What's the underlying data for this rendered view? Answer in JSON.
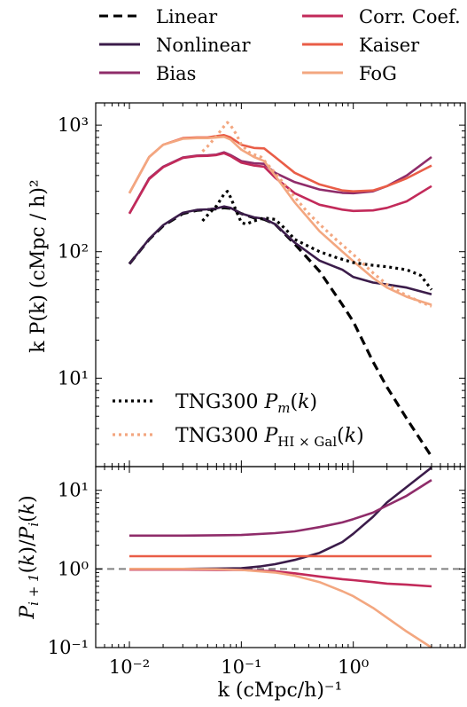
{
  "legend_top": {
    "entries": [
      {
        "label": "Linear",
        "color": "#000000",
        "dash": "dashed"
      },
      {
        "label": "Nonlinear",
        "color": "#3b1c4a"
      },
      {
        "label": "Bias",
        "color": "#8f2c6a"
      },
      {
        "label": "Corr. Coef.",
        "color": "#c22a5a"
      },
      {
        "label": "Kaiser",
        "color": "#e95d47"
      },
      {
        "label": "FoG",
        "color": "#f3a780"
      }
    ]
  },
  "chart_data": [
    {
      "type": "line",
      "panel": "top",
      "ylabel": "k P(k) (cMpc / h)²",
      "xscale": "log",
      "yscale": "log",
      "xlim": [
        0.005,
        10
      ],
      "ylim": [
        2,
        1500
      ],
      "yticks": [
        {
          "value": 10,
          "label": "10¹"
        },
        {
          "value": 100,
          "label": "10²"
        },
        {
          "value": 1000,
          "label": "10³"
        }
      ],
      "legend": {
        "placement": "lower-left",
        "entries": [
          {
            "label": "TNG300 P_m(k)",
            "text": "TNG300",
            "math": "P",
            "sub": "m",
            "suffix": "(k)",
            "color": "#000000",
            "dash": "dotted"
          },
          {
            "label": "TNG300 P_HI×Gal(k)",
            "text": "TNG300",
            "math": "P",
            "sub": "HI × Gal",
            "suffix": "(k)",
            "color": "#f3a780",
            "dash": "dotted"
          }
        ]
      },
      "series": [
        {
          "name": "Linear",
          "color": "#000000",
          "dash": "dashed",
          "x": [
            0.01,
            0.015,
            0.02,
            0.03,
            0.04,
            0.05,
            0.06,
            0.07,
            0.08,
            0.1,
            0.13,
            0.16,
            0.2,
            0.3,
            0.5,
            0.8,
            1.0,
            1.5,
            2.0,
            3.0,
            5.0
          ],
          "y": [
            80,
            125,
            160,
            200,
            212,
            215,
            218,
            222,
            220,
            200,
            185,
            180,
            165,
            115,
            70,
            38,
            28,
            13.5,
            8.5,
            4.8,
            2.4
          ]
        },
        {
          "name": "Nonlinear",
          "color": "#3b1c4a",
          "x": [
            0.01,
            0.015,
            0.02,
            0.03,
            0.04,
            0.05,
            0.06,
            0.07,
            0.08,
            0.1,
            0.13,
            0.16,
            0.2,
            0.3,
            0.5,
            0.8,
            1.0,
            1.5,
            2.0,
            3.0,
            5.0
          ],
          "y": [
            80,
            126,
            162,
            203,
            214,
            216,
            220,
            228,
            222,
            200,
            187,
            182,
            165,
            118,
            85,
            72,
            63,
            57,
            55,
            52,
            46
          ]
        },
        {
          "name": "Bias",
          "color": "#8f2c6a",
          "x": [
            0.01,
            0.015,
            0.02,
            0.03,
            0.04,
            0.05,
            0.06,
            0.07,
            0.08,
            0.1,
            0.13,
            0.16,
            0.2,
            0.3,
            0.5,
            0.8,
            1.0,
            1.5,
            2.0,
            3.0,
            5.0
          ],
          "y": [
            200,
            380,
            470,
            555,
            575,
            578,
            585,
            610,
            580,
            520,
            500,
            495,
            420,
            355,
            310,
            292,
            290,
            300,
            330,
            400,
            560
          ]
        },
        {
          "name": "Corr. Coef.",
          "color": "#c22a5a",
          "x": [
            0.01,
            0.015,
            0.02,
            0.03,
            0.04,
            0.05,
            0.06,
            0.07,
            0.08,
            0.1,
            0.13,
            0.16,
            0.2,
            0.3,
            0.5,
            0.8,
            1.0,
            1.5,
            2.0,
            3.0,
            5.0
          ],
          "y": [
            200,
            375,
            465,
            550,
            570,
            572,
            580,
            600,
            570,
            505,
            480,
            470,
            385,
            290,
            235,
            215,
            210,
            212,
            222,
            250,
            330
          ]
        },
        {
          "name": "Kaiser",
          "color": "#e95d47",
          "x": [
            0.01,
            0.015,
            0.02,
            0.03,
            0.04,
            0.05,
            0.06,
            0.07,
            0.08,
            0.1,
            0.13,
            0.16,
            0.2,
            0.3,
            0.5,
            0.8,
            1.0,
            1.5,
            2.0,
            3.0,
            5.0
          ],
          "y": [
            290,
            560,
            700,
            790,
            800,
            800,
            820,
            835,
            800,
            700,
            660,
            655,
            560,
            420,
            340,
            305,
            300,
            305,
            330,
            380,
            480
          ]
        },
        {
          "name": "FoG",
          "color": "#f3a780",
          "x": [
            0.01,
            0.015,
            0.02,
            0.03,
            0.04,
            0.05,
            0.06,
            0.07,
            0.08,
            0.1,
            0.13,
            0.16,
            0.2,
            0.3,
            0.5,
            0.8,
            1.0,
            1.5,
            2.0,
            3.0,
            5.0
          ],
          "y": [
            290,
            560,
            700,
            780,
            790,
            790,
            800,
            810,
            770,
            640,
            560,
            520,
            400,
            245,
            145,
            100,
            84,
            62,
            52,
            44,
            38
          ]
        },
        {
          "name": "TNG300 P_m(k)",
          "color": "#000000",
          "dash": "dotted",
          "x": [
            0.045,
            0.05,
            0.06,
            0.07,
            0.075,
            0.08,
            0.09,
            0.1,
            0.11,
            0.13,
            0.16,
            0.2,
            0.25,
            0.3,
            0.4,
            0.5,
            0.7,
            1.0,
            1.5,
            2.0,
            3.0,
            4.0,
            5.0
          ],
          "y": [
            175,
            195,
            230,
            285,
            300,
            270,
            210,
            170,
            165,
            175,
            185,
            180,
            150,
            125,
            110,
            100,
            90,
            82,
            78,
            76,
            72,
            65,
            50
          ]
        },
        {
          "name": "TNG300 P_HI×Gal(k)",
          "color": "#f3a780",
          "dash": "dotted",
          "x": [
            0.045,
            0.05,
            0.06,
            0.07,
            0.075,
            0.08,
            0.09,
            0.1,
            0.12,
            0.15,
            0.2,
            0.25,
            0.3,
            0.4,
            0.5,
            0.7,
            1.0,
            1.5,
            2.0,
            3.0,
            4.0,
            5.0
          ],
          "y": [
            620,
            680,
            820,
            980,
            1050,
            1000,
            850,
            700,
            600,
            560,
            420,
            330,
            270,
            200,
            165,
            125,
            95,
            68,
            55,
            45,
            40,
            37
          ]
        }
      ]
    },
    {
      "type": "line",
      "panel": "bottom",
      "xlabel": "k (cMpc/h)⁻¹",
      "ylabel": "P_{i+1}(k)/P_i(k)",
      "xscale": "log",
      "yscale": "log",
      "xlim": [
        0.005,
        10
      ],
      "ylim": [
        0.1,
        20
      ],
      "xticks": [
        {
          "value": 0.01,
          "label": "10⁻²"
        },
        {
          "value": 0.1,
          "label": "10⁻¹"
        },
        {
          "value": 1,
          "label": "10⁰"
        }
      ],
      "yticks": [
        {
          "value": 0.1,
          "label": "10⁻¹"
        },
        {
          "value": 1,
          "label": "10⁰"
        },
        {
          "value": 10,
          "label": "10¹"
        }
      ],
      "reference_line": {
        "y": 1,
        "color": "#808080",
        "dash": "dashed"
      },
      "series": [
        {
          "name": "Nonlinear",
          "color": "#3b1c4a",
          "x": [
            0.01,
            0.03,
            0.1,
            0.15,
            0.2,
            0.3,
            0.5,
            0.8,
            1.0,
            1.5,
            2.0,
            3.0,
            5.0
          ],
          "y": [
            1.0,
            1.0,
            1.02,
            1.08,
            1.15,
            1.3,
            1.6,
            2.2,
            2.8,
            4.6,
            7.0,
            11.0,
            19.5
          ]
        },
        {
          "name": "Bias",
          "color": "#8f2c6a",
          "x": [
            0.01,
            0.03,
            0.1,
            0.2,
            0.3,
            0.5,
            0.8,
            1.0,
            1.5,
            2.0,
            3.0,
            5.0
          ],
          "y": [
            2.65,
            2.65,
            2.7,
            2.85,
            3.0,
            3.4,
            3.9,
            4.3,
            5.2,
            6.4,
            8.5,
            13.5
          ]
        },
        {
          "name": "Corr. Coef.",
          "color": "#c22a5a",
          "x": [
            0.01,
            0.03,
            0.1,
            0.2,
            0.3,
            0.5,
            0.8,
            1.0,
            1.5,
            2.0,
            3.0,
            5.0
          ],
          "y": [
            0.98,
            0.98,
            0.97,
            0.93,
            0.88,
            0.8,
            0.74,
            0.72,
            0.68,
            0.65,
            0.63,
            0.6
          ]
        },
        {
          "name": "Kaiser",
          "color": "#e95d47",
          "x": [
            0.01,
            5.0
          ],
          "y": [
            1.45,
            1.45
          ]
        },
        {
          "name": "FoG",
          "color": "#f3a780",
          "x": [
            0.01,
            0.03,
            0.06,
            0.1,
            0.2,
            0.3,
            0.5,
            0.8,
            1.0,
            1.5,
            2.0,
            3.0,
            5.0
          ],
          "y": [
            1.0,
            1.0,
            0.99,
            0.97,
            0.9,
            0.82,
            0.68,
            0.52,
            0.45,
            0.32,
            0.24,
            0.16,
            0.1
          ]
        }
      ]
    }
  ]
}
